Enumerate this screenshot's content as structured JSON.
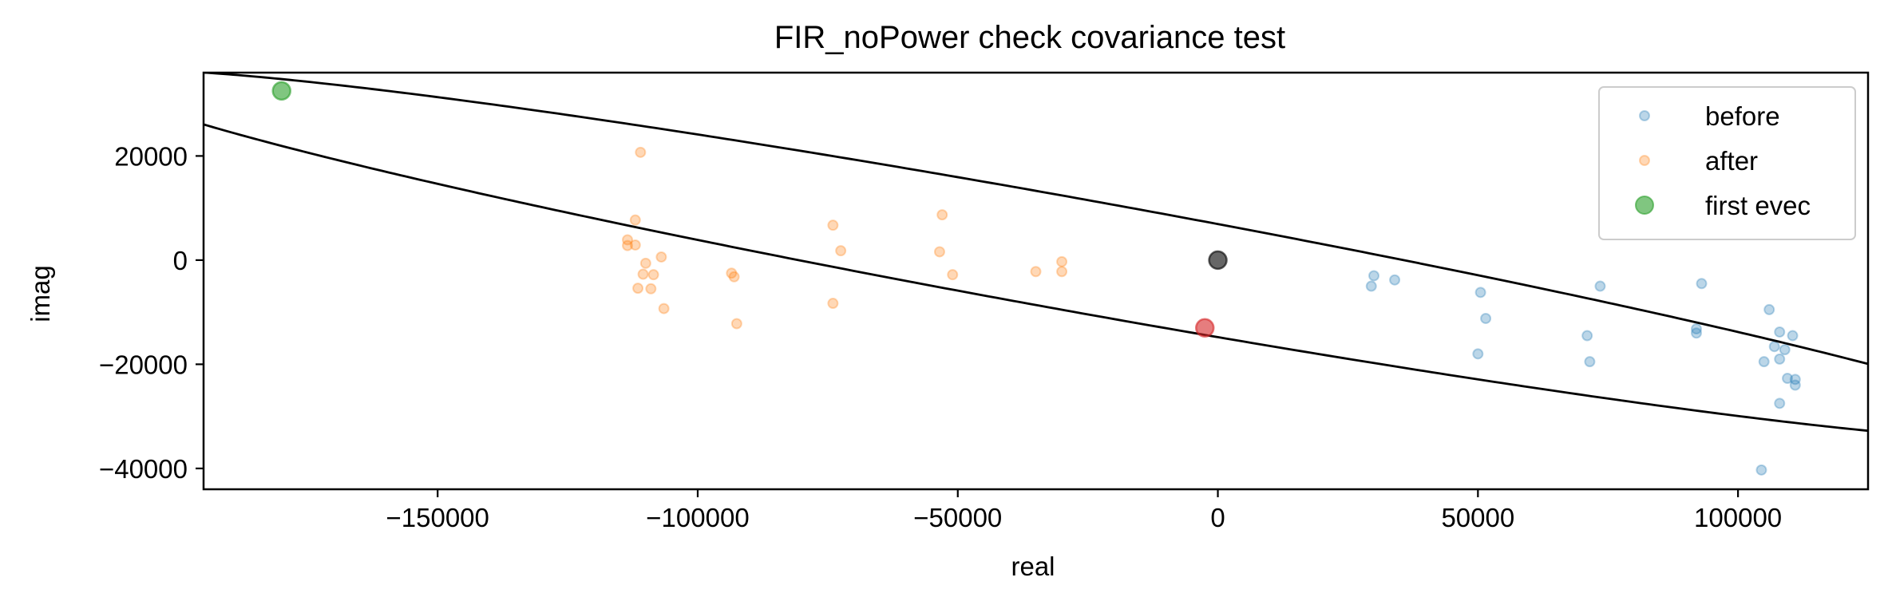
{
  "chart_data": {
    "type": "scatter",
    "title": "FIR_noPower check covariance test",
    "xlabel": "real",
    "ylabel": "imag",
    "xlim": [
      -195000,
      125000
    ],
    "ylim": [
      -44000,
      36000
    ],
    "xticks": [
      -150000,
      -100000,
      -50000,
      0,
      50000,
      100000
    ],
    "yticks": [
      -40000,
      -20000,
      0,
      20000
    ],
    "xtick_labels": [
      "−150000",
      "−100000",
      "−50000",
      "0",
      "50000",
      "100000"
    ],
    "ytick_labels": [
      "−40000",
      "−20000",
      "0",
      "20000"
    ],
    "grid": false,
    "legend_position": "top-right",
    "series": [
      {
        "name": "before",
        "color": "#1f77b4",
        "points": [
          [
            30000,
            -3000
          ],
          [
            29500,
            -5000
          ],
          [
            34000,
            -3800
          ],
          [
            50500,
            -6200
          ],
          [
            51500,
            -11200
          ],
          [
            50000,
            -18000
          ],
          [
            71000,
            -14500
          ],
          [
            71500,
            -19500
          ],
          [
            73500,
            -5000
          ],
          [
            92000,
            -13200
          ],
          [
            92000,
            -14000
          ],
          [
            93000,
            -4500
          ],
          [
            104500,
            -40300
          ],
          [
            105000,
            -19500
          ],
          [
            106000,
            -9500
          ],
          [
            107000,
            -16600
          ],
          [
            108000,
            -13800
          ],
          [
            108000,
            -19000
          ],
          [
            109000,
            -17200
          ],
          [
            108000,
            -27500
          ],
          [
            109500,
            -22700
          ],
          [
            110500,
            -14500
          ],
          [
            111000,
            -22900
          ],
          [
            111000,
            -24000
          ]
        ]
      },
      {
        "name": "after",
        "color": "#ff7f0e",
        "points": [
          [
            -111000,
            20700
          ],
          [
            -112000,
            7700
          ],
          [
            -113500,
            3900
          ],
          [
            -113500,
            2800
          ],
          [
            -112000,
            2900
          ],
          [
            -110000,
            -600
          ],
          [
            -107000,
            600
          ],
          [
            -110500,
            -2700
          ],
          [
            -108500,
            -2800
          ],
          [
            -111500,
            -5400
          ],
          [
            -109000,
            -5500
          ],
          [
            -106500,
            -9300
          ],
          [
            -93500,
            -2500
          ],
          [
            -93000,
            -3200
          ],
          [
            -92500,
            -12200
          ],
          [
            -74000,
            6700
          ],
          [
            -72500,
            1800
          ],
          [
            -74000,
            -8300
          ],
          [
            -53000,
            8700
          ],
          [
            -53500,
            1600
          ],
          [
            -51000,
            -2800
          ],
          [
            -35000,
            -2200
          ],
          [
            -30000,
            -2200
          ],
          [
            -30000,
            -300
          ]
        ]
      },
      {
        "name": "first evec",
        "color": "#2ca02c",
        "points": [
          [
            -180000,
            32500
          ]
        ]
      }
    ],
    "markers": [
      {
        "label": "",
        "color": "#000000",
        "point": [
          0,
          0
        ]
      },
      {
        "label": "",
        "color": "#d62728",
        "point": [
          -2500,
          -13000
        ]
      }
    ],
    "ellipse": {
      "center": [
        -27500,
        1000
      ],
      "semi_major": 191000,
      "semi_minor": 10800,
      "angle_deg": -10.2,
      "color": "#000000"
    }
  }
}
